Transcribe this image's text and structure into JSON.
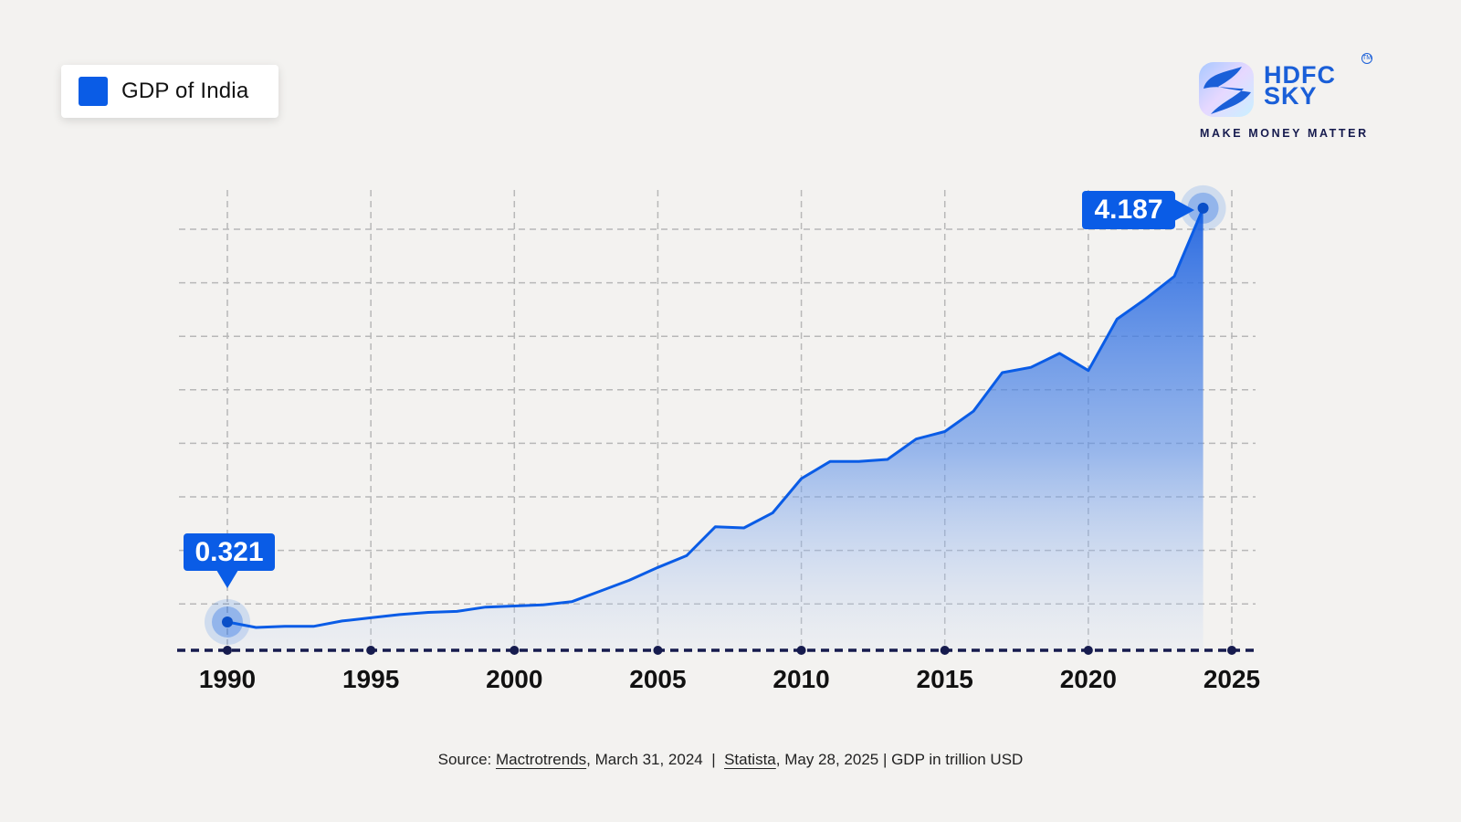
{
  "legend": {
    "label": "GDP of India",
    "color": "#0a5ce6"
  },
  "logo": {
    "line1": "HDFC",
    "line2": "SKY",
    "tm": "TM",
    "tagline": "MAKE MONEY MATTER"
  },
  "callouts": {
    "start": {
      "year": 1990,
      "value": "0.321"
    },
    "end": {
      "year": 2024,
      "value": "4.187"
    }
  },
  "source": {
    "prefix": "Source: ",
    "src1": "Mactrotrends",
    "src1_date": ", March 31, 2024  |  ",
    "src2": "Statista",
    "src2_date": ", May 28, 2025 | GDP in trillion USD"
  },
  "colors": {
    "line": "#0a5ce6",
    "axis": "#161b4e",
    "grid": "#b8b8b8",
    "background": "#f3f2f0"
  },
  "chart_data": {
    "type": "area",
    "title": "GDP of India",
    "xlabel": "",
    "ylabel": "GDP in trillion USD",
    "x_ticks": [
      "1990",
      "1995",
      "2000",
      "2005",
      "2010",
      "2015",
      "2020",
      "2025"
    ],
    "xlim": [
      1990,
      2025
    ],
    "ylim": [
      0,
      4.5
    ],
    "grid": true,
    "legend_position": "top-left",
    "annotations": [
      {
        "x": 1990,
        "y": 0.321,
        "text": "0.321"
      },
      {
        "x": 2024,
        "y": 4.187,
        "text": "4.187"
      }
    ],
    "series": [
      {
        "name": "GDP of India",
        "x": [
          1990,
          1991,
          1992,
          1993,
          1994,
          1995,
          1996,
          1997,
          1998,
          1999,
          2000,
          2001,
          2002,
          2003,
          2004,
          2005,
          2006,
          2007,
          2008,
          2009,
          2010,
          2011,
          2012,
          2013,
          2014,
          2015,
          2016,
          2017,
          2018,
          2019,
          2020,
          2021,
          2022,
          2023,
          2024
        ],
        "values": [
          0.321,
          0.27,
          0.28,
          0.28,
          0.33,
          0.36,
          0.39,
          0.41,
          0.42,
          0.46,
          0.47,
          0.48,
          0.51,
          0.61,
          0.71,
          0.83,
          0.94,
          1.21,
          1.2,
          1.34,
          1.66,
          1.82,
          1.82,
          1.84,
          2.03,
          2.1,
          2.29,
          2.65,
          2.7,
          2.83,
          2.67,
          3.15,
          3.34,
          3.55,
          4.187
        ]
      }
    ],
    "source": "Source: Mactrotrends, March 31, 2024 | Statista, May 28, 2025 | GDP in trillion USD"
  }
}
